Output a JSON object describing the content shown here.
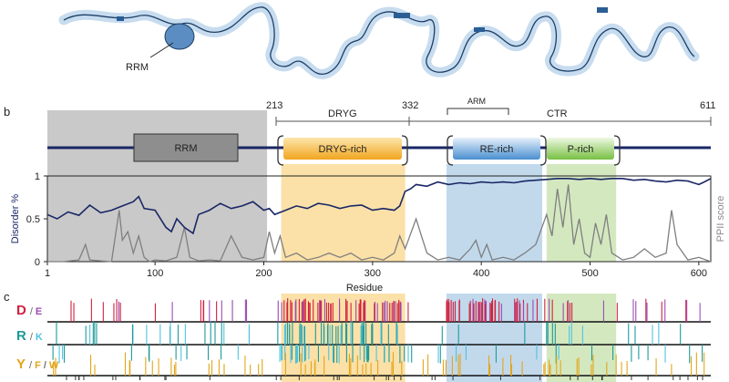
{
  "panel_a": {
    "rrm_label": "RRM"
  },
  "panel_b": {
    "letter": "b",
    "residue_markers": [
      "213",
      "332",
      "611"
    ],
    "region_labels": {
      "dryg": "DRYG",
      "arm": "ARM",
      "ctr": "CTR"
    },
    "domains": {
      "rrm": "RRM",
      "dryg_rich": "DRYG-rich",
      "re_rich": "RE-rich",
      "p_rich": "P-rich"
    },
    "colors": {
      "disorder_line": "#1a2766",
      "ppii_line": "#7f7f7f",
      "rrm_shade": "#c9c9c9",
      "dryg_shade": "#fbe1a8",
      "re_shade": "#c2d9ec",
      "p_shade": "#d4e8c0"
    }
  },
  "chart_data": {
    "type": "line",
    "xlabel": "Residue",
    "ylabel_left": "Disorder %",
    "ylabel_right": "PPII score",
    "xlim": [
      1,
      611
    ],
    "ylim": [
      0,
      1
    ],
    "x_ticks": [
      1,
      100,
      200,
      300,
      400,
      500,
      600
    ],
    "y_ticks": [
      0,
      0.5,
      1
    ],
    "shaded_regions": [
      {
        "name": "RRM",
        "start": 1,
        "end": 203
      },
      {
        "name": "DRYG-rich",
        "start": 216,
        "end": 330
      },
      {
        "name": "RE-rich",
        "start": 368,
        "end": 456
      },
      {
        "name": "P-rich",
        "start": 460,
        "end": 524
      }
    ],
    "series": [
      {
        "name": "Disorder %",
        "x": [
          1,
          10,
          20,
          30,
          40,
          50,
          60,
          70,
          80,
          85,
          90,
          100,
          110,
          115,
          120,
          127,
          135,
          140,
          150,
          160,
          170,
          180,
          190,
          200,
          205,
          210,
          220,
          230,
          240,
          250,
          260,
          270,
          280,
          290,
          300,
          310,
          320,
          325,
          330,
          335,
          340,
          350,
          360,
          370,
          380,
          390,
          400,
          410,
          420,
          430,
          440,
          450,
          460,
          470,
          480,
          490,
          500,
          510,
          520,
          530,
          540,
          550,
          560,
          570,
          580,
          590,
          600,
          605,
          611
        ],
        "values": [
          0.55,
          0.5,
          0.58,
          0.54,
          0.66,
          0.57,
          0.6,
          0.65,
          0.7,
          0.76,
          0.62,
          0.6,
          0.4,
          0.35,
          0.5,
          0.4,
          0.33,
          0.55,
          0.6,
          0.68,
          0.62,
          0.65,
          0.7,
          0.6,
          0.62,
          0.55,
          0.6,
          0.65,
          0.62,
          0.68,
          0.66,
          0.62,
          0.65,
          0.66,
          0.6,
          0.62,
          0.6,
          0.65,
          0.82,
          0.85,
          0.9,
          0.88,
          0.93,
          0.9,
          0.92,
          0.91,
          0.93,
          0.92,
          0.93,
          0.92,
          0.94,
          0.95,
          0.96,
          0.97,
          0.97,
          0.96,
          0.97,
          0.96,
          0.97,
          0.97,
          0.95,
          0.96,
          0.94,
          0.93,
          0.95,
          0.94,
          0.9,
          0.93,
          0.97
        ]
      },
      {
        "name": "PPII score",
        "x": [
          1,
          15,
          30,
          36,
          40,
          50,
          60,
          67,
          70,
          75,
          80,
          85,
          90,
          95,
          100,
          110,
          120,
          127,
          132,
          140,
          150,
          160,
          170,
          180,
          190,
          200,
          205,
          210,
          215,
          220,
          230,
          240,
          250,
          260,
          270,
          280,
          290,
          300,
          310,
          320,
          325,
          330,
          340,
          345,
          350,
          360,
          370,
          380,
          390,
          395,
          400,
          405,
          410,
          420,
          430,
          440,
          450,
          460,
          465,
          470,
          475,
          480,
          485,
          490,
          495,
          500,
          505,
          510,
          515,
          520,
          530,
          540,
          550,
          560,
          570,
          575,
          580,
          590,
          600,
          611
        ],
        "values": [
          0.0,
          0.0,
          0.02,
          0.2,
          0.02,
          0.01,
          0.0,
          0.6,
          0.25,
          0.35,
          0.1,
          0.3,
          0.05,
          0.0,
          0.02,
          0.01,
          0.05,
          0.4,
          0.05,
          0.01,
          0.02,
          0.01,
          0.3,
          0.05,
          0.02,
          0.05,
          0.35,
          0.1,
          0.3,
          0.05,
          0.1,
          0.02,
          0.05,
          0.1,
          0.05,
          0.1,
          0.02,
          0.05,
          0.02,
          0.1,
          0.3,
          0.15,
          0.5,
          0.3,
          0.1,
          0.02,
          0.05,
          0.02,
          0.15,
          0.25,
          0.05,
          0.2,
          0.02,
          0.05,
          0.02,
          0.1,
          0.2,
          0.55,
          0.3,
          0.85,
          0.4,
          0.9,
          0.2,
          0.5,
          0.1,
          0.05,
          0.45,
          0.2,
          0.55,
          0.1,
          0.02,
          0.05,
          0.15,
          0.05,
          0.1,
          0.6,
          0.2,
          0.02,
          0.05,
          0.0
        ]
      }
    ]
  },
  "panel_c": {
    "letter": "c",
    "rows": [
      {
        "primary": "D",
        "sep": "/",
        "secondary": [
          "E"
        ],
        "primary_color": "#d0213f",
        "secondary_colors": [
          "#9a4cb3"
        ]
      },
      {
        "primary": "R",
        "sep": "/",
        "secondary": [
          "K"
        ],
        "primary_color": "#1f9a9a",
        "secondary_colors": [
          "#4fc3e0"
        ]
      },
      {
        "primary": "Y",
        "sep": "/",
        "secondary": [
          "F",
          "/",
          "W"
        ],
        "primary_color": "#e3a51a",
        "secondary_colors": [
          "#e3a51a",
          "#777777",
          "#e3a51a"
        ]
      }
    ]
  }
}
